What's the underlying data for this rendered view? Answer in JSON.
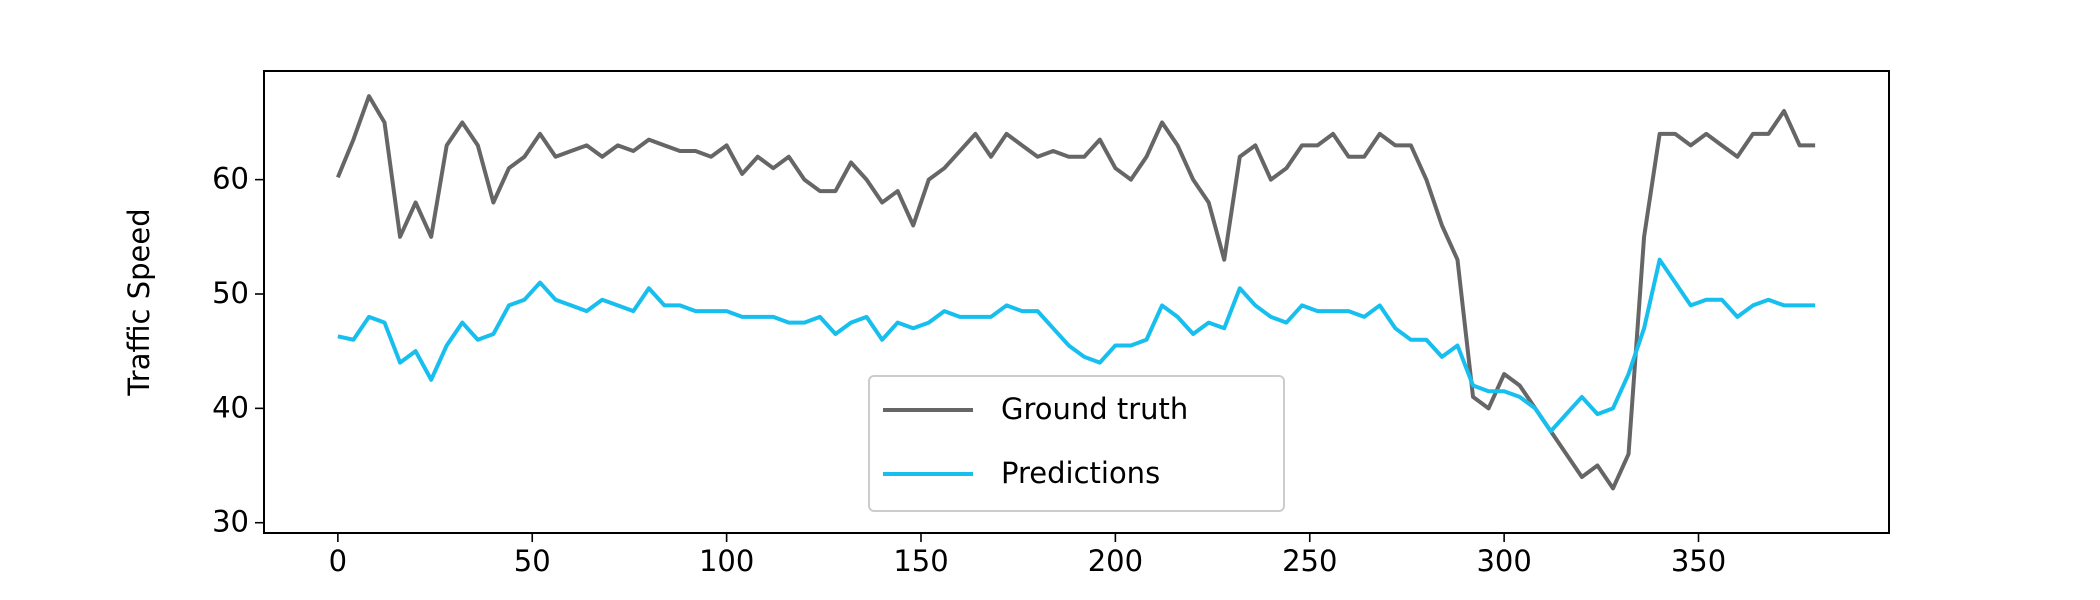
{
  "chart_data": {
    "type": "line",
    "y_label": "Traffic Speed",
    "x": [
      0,
      4,
      8,
      12,
      16,
      20,
      24,
      28,
      32,
      36,
      40,
      44,
      48,
      52,
      56,
      60,
      64,
      68,
      72,
      76,
      80,
      84,
      88,
      92,
      96,
      100,
      104,
      108,
      112,
      116,
      120,
      124,
      128,
      132,
      136,
      140,
      144,
      148,
      152,
      156,
      160,
      164,
      168,
      172,
      176,
      180,
      184,
      188,
      192,
      196,
      200,
      204,
      208,
      212,
      216,
      220,
      224,
      228,
      232,
      236,
      240,
      244,
      248,
      252,
      256,
      260,
      264,
      268,
      272,
      276,
      280,
      284,
      288,
      292,
      296,
      300,
      304,
      308,
      312,
      316,
      320,
      324,
      328,
      332,
      336,
      340,
      344,
      348,
      352,
      356,
      360,
      364,
      368,
      372,
      376,
      380
    ],
    "series": [
      {
        "name": "Ground truth",
        "color": "#666666",
        "values": [
          60.2,
          63.5,
          67.3,
          65,
          55,
          58,
          55,
          63,
          65,
          63,
          58,
          61,
          62,
          64,
          62,
          62.5,
          63,
          62,
          63,
          62.5,
          63.5,
          63,
          62.5,
          62.5,
          62,
          63,
          60.5,
          62,
          61,
          62,
          60,
          59,
          59,
          61.5,
          60,
          58,
          59,
          56,
          60,
          61,
          62.5,
          64,
          62,
          64,
          63,
          62,
          62.5,
          62,
          62,
          63.5,
          61,
          60,
          62,
          65,
          63,
          60,
          58,
          53,
          62,
          63,
          60,
          61,
          63,
          63,
          64,
          62,
          62,
          64,
          63,
          63,
          60,
          56,
          53,
          41,
          40,
          43,
          42,
          40,
          38,
          36,
          34,
          35,
          33,
          36,
          55,
          64,
          64,
          63,
          64,
          63,
          62,
          64,
          64,
          66,
          63,
          63
        ]
      },
      {
        "name": "Predictions",
        "color": "#17bfef",
        "values": [
          46.3,
          46,
          48,
          47.5,
          44,
          45,
          42.5,
          45.5,
          47.5,
          46,
          46.5,
          49,
          49.5,
          51,
          49.5,
          49,
          48.5,
          49.5,
          49,
          48.5,
          50.5,
          49,
          49,
          48.5,
          48.5,
          48.5,
          48,
          48,
          48,
          47.5,
          47.5,
          48,
          46.5,
          47.5,
          48,
          46,
          47.5,
          47,
          47.5,
          48.5,
          48,
          48,
          48,
          49,
          48.5,
          48.5,
          47,
          45.5,
          44.5,
          44,
          45.5,
          45.5,
          46,
          49,
          48,
          46.5,
          47.5,
          47,
          50.5,
          49,
          48,
          47.5,
          49,
          48.5,
          48.5,
          48.5,
          48,
          49,
          47,
          46,
          46,
          44.5,
          45.5,
          42,
          41.5,
          41.5,
          41,
          40,
          38,
          39.5,
          41,
          39.5,
          40,
          43,
          47,
          53,
          51,
          49,
          49.5,
          49.5,
          48,
          49,
          49.5,
          49,
          49,
          49
        ]
      }
    ],
    "xlim": [
      -19,
      399
    ],
    "ylim": [
      29.1,
      69.5
    ],
    "xticks": [
      0,
      50,
      100,
      150,
      200,
      250,
      300,
      350
    ],
    "yticks": [
      30,
      40,
      50,
      60
    ],
    "grid": false,
    "legend": "lower center"
  }
}
